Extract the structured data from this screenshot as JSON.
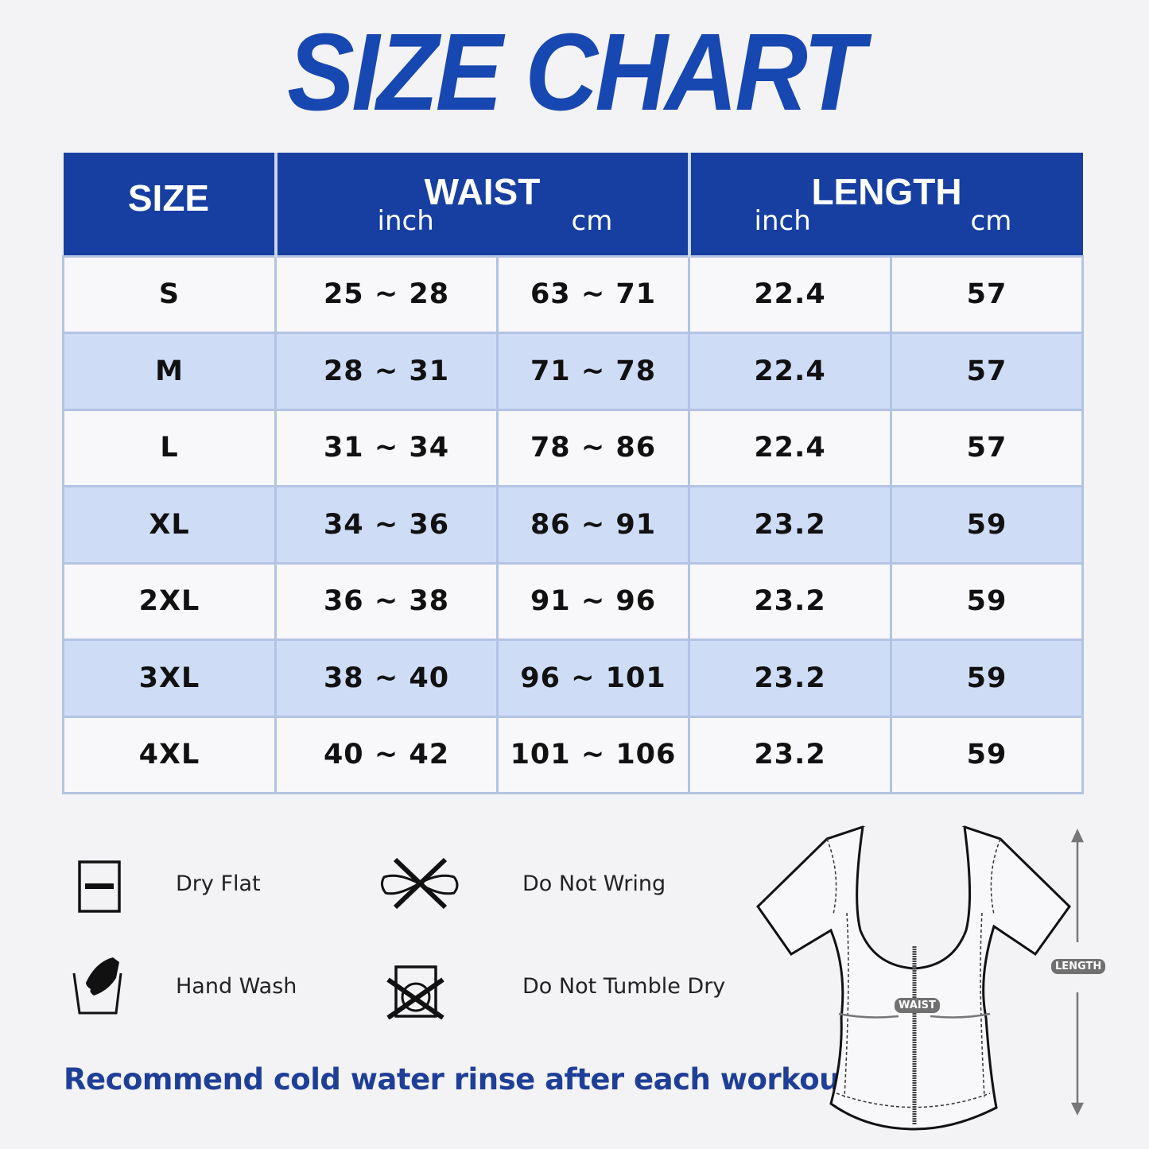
{
  "title": "SIZE CHART",
  "table": {
    "headers": {
      "size": "SIZE",
      "waist": "WAIST",
      "length": "LENGTH",
      "inch": "inch",
      "cm": "cm"
    },
    "rows": [
      {
        "size": "S",
        "waist_in": "25 ~ 28",
        "waist_cm": "63 ~ 71",
        "length_in": "22.4",
        "length_cm": "57"
      },
      {
        "size": "M",
        "waist_in": "28 ~ 31",
        "waist_cm": "71 ~ 78",
        "length_in": "22.4",
        "length_cm": "57"
      },
      {
        "size": "L",
        "waist_in": "31 ~ 34",
        "waist_cm": "78 ~ 86",
        "length_in": "22.4",
        "length_cm": "57"
      },
      {
        "size": "XL",
        "waist_in": "34 ~ 36",
        "waist_cm": "86 ~ 91",
        "length_in": "23.2",
        "length_cm": "59"
      },
      {
        "size": "2XL",
        "waist_in": "36 ~ 38",
        "waist_cm": "91 ~ 96",
        "length_in": "23.2",
        "length_cm": "59"
      },
      {
        "size": "3XL",
        "waist_in": "38 ~ 40",
        "waist_cm": "96 ~ 101",
        "length_in": "23.2",
        "length_cm": "59"
      },
      {
        "size": "4XL",
        "waist_in": "40 ~ 42",
        "waist_cm": "101 ~ 106",
        "length_in": "23.2",
        "length_cm": "59"
      }
    ]
  },
  "care": [
    {
      "label": "Dry Flat",
      "icon": "dry-flat-icon"
    },
    {
      "label": "Do Not Wring",
      "icon": "do-not-wring-icon"
    },
    {
      "label": "Hand Wash",
      "icon": "hand-wash-icon"
    },
    {
      "label": "Do Not Tumble Dry",
      "icon": "do-not-tumble-dry-icon"
    }
  ],
  "note": "Recommend cold water rinse after each workout.",
  "diagram": {
    "waist_label": "WAIST",
    "length_label": "LENGTH"
  },
  "colors": {
    "brand": "#173ea1",
    "row_alt": "#cedcf6",
    "note": "#1e3f98"
  }
}
